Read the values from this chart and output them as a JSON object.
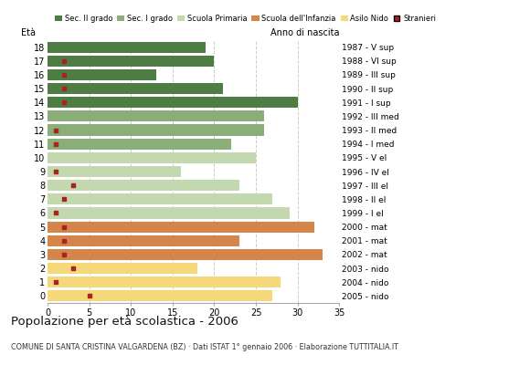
{
  "ages": [
    18,
    17,
    16,
    15,
    14,
    13,
    12,
    11,
    10,
    9,
    8,
    7,
    6,
    5,
    4,
    3,
    2,
    1,
    0
  ],
  "years": [
    "1987 - V sup",
    "1988 - VI sup",
    "1989 - III sup",
    "1990 - II sup",
    "1991 - I sup",
    "1992 - III med",
    "1993 - II med",
    "1994 - I med",
    "1995 - V el",
    "1996 - IV el",
    "1997 - III el",
    "1998 - II el",
    "1999 - I el",
    "2000 - mat",
    "2001 - mat",
    "2002 - mat",
    "2003 - nido",
    "2004 - nido",
    "2005 - nido"
  ],
  "bar_values": [
    19,
    20,
    13,
    21,
    30,
    26,
    26,
    22,
    25,
    16,
    23,
    27,
    29,
    32,
    23,
    33,
    18,
    28,
    27
  ],
  "stranieri_values": [
    0,
    2,
    2,
    2,
    2,
    0,
    1,
    1,
    0,
    1,
    3,
    2,
    1,
    2,
    2,
    2,
    3,
    1,
    5
  ],
  "bar_colors": [
    "#4e7c45",
    "#4e7c45",
    "#4e7c45",
    "#4e7c45",
    "#4e7c45",
    "#8aad7a",
    "#8aad7a",
    "#8aad7a",
    "#c4d8b0",
    "#c4d8b0",
    "#c4d8b0",
    "#c4d8b0",
    "#c4d8b0",
    "#d4854a",
    "#d4854a",
    "#d4854a",
    "#f5d87a",
    "#f5d87a",
    "#f5d87a"
  ],
  "legend_labels": [
    "Sec. II grado",
    "Sec. I grado",
    "Scuola Primaria",
    "Scuola dell'Infanzia",
    "Asilo Nido",
    "Stranieri"
  ],
  "legend_colors": [
    "#4e7c45",
    "#8aad7a",
    "#c4d8b0",
    "#d4854a",
    "#f5d87a",
    "#aa2222"
  ],
  "stranieri_color": "#aa2222",
  "title": "Popolazione per età scolastica - 2006",
  "subtitle": "COMUNE DI SANTA CRISTINA VALGARDENA (BZ) · Dati ISTAT 1° gennaio 2006 · Elaborazione TUTTITALIA.IT",
  "label_eta": "Età",
  "label_anno": "Anno di nascita",
  "xlim": [
    0,
    35
  ],
  "xticks": [
    0,
    5,
    10,
    15,
    20,
    25,
    30,
    35
  ],
  "background_color": "#ffffff",
  "grid_color": "#cccccc"
}
